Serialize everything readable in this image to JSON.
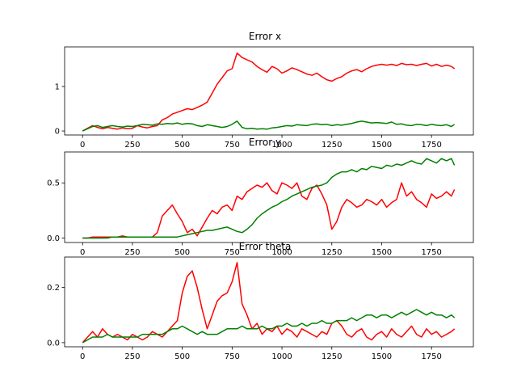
{
  "chart_data": [
    {
      "type": "line",
      "title": "Error x",
      "xlim": [
        -90,
        1960
      ],
      "ylim": [
        -0.09,
        1.89
      ],
      "xticks": [
        0,
        250,
        500,
        750,
        1000,
        1250,
        1500,
        1750
      ],
      "xtick_labels": [
        "0",
        "250",
        "500",
        "750",
        "1000",
        "1250",
        "1500",
        "1750"
      ],
      "yticks": [
        0,
        1
      ],
      "ytick_labels": [
        "0",
        "1"
      ],
      "grid": false,
      "series": [
        {
          "color": "#ff0000",
          "x": [
            0,
            25,
            50,
            75,
            100,
            125,
            150,
            175,
            200,
            225,
            250,
            275,
            300,
            325,
            350,
            375,
            400,
            425,
            450,
            475,
            500,
            525,
            550,
            575,
            600,
            625,
            650,
            675,
            700,
            725,
            750,
            775,
            800,
            825,
            850,
            875,
            900,
            925,
            950,
            975,
            1000,
            1025,
            1050,
            1075,
            1100,
            1125,
            1150,
            1175,
            1200,
            1225,
            1250,
            1275,
            1300,
            1325,
            1350,
            1375,
            1400,
            1425,
            1450,
            1475,
            1500,
            1525,
            1550,
            1575,
            1600,
            1625,
            1650,
            1675,
            1700,
            1725,
            1750,
            1775,
            1800,
            1825,
            1850,
            1865
          ],
          "y": [
            0.0,
            0.06,
            0.12,
            0.08,
            0.05,
            0.08,
            0.06,
            0.04,
            0.07,
            0.05,
            0.06,
            0.12,
            0.09,
            0.07,
            0.1,
            0.12,
            0.25,
            0.3,
            0.38,
            0.42,
            0.46,
            0.5,
            0.48,
            0.53,
            0.58,
            0.65,
            0.85,
            1.05,
            1.2,
            1.35,
            1.4,
            1.75,
            1.65,
            1.6,
            1.55,
            1.45,
            1.38,
            1.32,
            1.45,
            1.4,
            1.3,
            1.35,
            1.42,
            1.38,
            1.33,
            1.28,
            1.25,
            1.3,
            1.22,
            1.15,
            1.12,
            1.18,
            1.22,
            1.3,
            1.35,
            1.38,
            1.33,
            1.4,
            1.45,
            1.48,
            1.5,
            1.48,
            1.5,
            1.47,
            1.52,
            1.49,
            1.5,
            1.47,
            1.5,
            1.52,
            1.46,
            1.5,
            1.45,
            1.48,
            1.45,
            1.4
          ]
        },
        {
          "color": "#008000",
          "x": [
            0,
            25,
            50,
            75,
            100,
            125,
            150,
            175,
            200,
            225,
            250,
            275,
            300,
            325,
            350,
            375,
            400,
            425,
            450,
            475,
            500,
            525,
            550,
            575,
            600,
            625,
            650,
            675,
            700,
            725,
            750,
            775,
            800,
            825,
            850,
            875,
            900,
            925,
            950,
            975,
            1000,
            1025,
            1050,
            1075,
            1100,
            1125,
            1150,
            1175,
            1200,
            1225,
            1250,
            1275,
            1300,
            1325,
            1350,
            1375,
            1400,
            1425,
            1450,
            1475,
            1500,
            1525,
            1550,
            1575,
            1600,
            1625,
            1650,
            1675,
            1700,
            1725,
            1750,
            1775,
            1800,
            1825,
            1850,
            1865
          ],
          "y": [
            0.0,
            0.05,
            0.1,
            0.12,
            0.08,
            0.1,
            0.12,
            0.1,
            0.09,
            0.11,
            0.1,
            0.12,
            0.15,
            0.14,
            0.13,
            0.16,
            0.15,
            0.17,
            0.16,
            0.18,
            0.15,
            0.17,
            0.16,
            0.12,
            0.1,
            0.14,
            0.12,
            0.1,
            0.08,
            0.1,
            0.15,
            0.22,
            0.08,
            0.05,
            0.06,
            0.04,
            0.05,
            0.04,
            0.07,
            0.08,
            0.1,
            0.12,
            0.11,
            0.14,
            0.13,
            0.12,
            0.15,
            0.16,
            0.14,
            0.15,
            0.12,
            0.14,
            0.13,
            0.15,
            0.17,
            0.2,
            0.22,
            0.2,
            0.18,
            0.19,
            0.18,
            0.17,
            0.2,
            0.15,
            0.16,
            0.13,
            0.12,
            0.15,
            0.14,
            0.12,
            0.15,
            0.13,
            0.12,
            0.14,
            0.1,
            0.15
          ]
        }
      ]
    },
    {
      "type": "line",
      "title": "Error y",
      "xlim": [
        -90,
        1960
      ],
      "ylim": [
        -0.04,
        0.78
      ],
      "xticks": [
        0,
        250,
        500,
        750,
        1000,
        1250,
        1500,
        1750
      ],
      "xtick_labels": [
        "0",
        "250",
        "500",
        "750",
        "1000",
        "1250",
        "1500",
        "1750"
      ],
      "yticks": [
        0,
        0.5
      ],
      "ytick_labels": [
        "0.0",
        "0.5"
      ],
      "grid": false,
      "series": [
        {
          "color": "#ff0000",
          "x": [
            0,
            25,
            50,
            75,
            100,
            125,
            150,
            175,
            200,
            225,
            250,
            275,
            300,
            325,
            350,
            375,
            400,
            425,
            450,
            475,
            500,
            525,
            550,
            575,
            600,
            625,
            650,
            675,
            700,
            725,
            750,
            775,
            800,
            825,
            850,
            875,
            900,
            925,
            950,
            975,
            1000,
            1025,
            1050,
            1075,
            1100,
            1125,
            1150,
            1175,
            1200,
            1225,
            1250,
            1275,
            1300,
            1325,
            1350,
            1375,
            1400,
            1425,
            1450,
            1475,
            1500,
            1525,
            1550,
            1575,
            1600,
            1625,
            1650,
            1675,
            1700,
            1725,
            1750,
            1775,
            1800,
            1825,
            1850,
            1865
          ],
          "y": [
            0.0,
            0.0,
            0.01,
            0.01,
            0.01,
            0.01,
            0.01,
            0.01,
            0.02,
            0.01,
            0.01,
            0.01,
            0.01,
            0.01,
            0.01,
            0.05,
            0.2,
            0.25,
            0.3,
            0.22,
            0.15,
            0.05,
            0.08,
            0.02,
            0.1,
            0.18,
            0.25,
            0.22,
            0.28,
            0.3,
            0.25,
            0.38,
            0.35,
            0.42,
            0.45,
            0.48,
            0.46,
            0.5,
            0.43,
            0.4,
            0.5,
            0.48,
            0.45,
            0.5,
            0.38,
            0.35,
            0.45,
            0.48,
            0.4,
            0.3,
            0.08,
            0.15,
            0.28,
            0.35,
            0.32,
            0.28,
            0.3,
            0.35,
            0.33,
            0.3,
            0.35,
            0.28,
            0.32,
            0.35,
            0.5,
            0.38,
            0.42,
            0.35,
            0.32,
            0.28,
            0.4,
            0.36,
            0.38,
            0.42,
            0.38,
            0.44
          ]
        },
        {
          "color": "#008000",
          "x": [
            0,
            25,
            50,
            75,
            100,
            125,
            150,
            175,
            200,
            225,
            250,
            275,
            300,
            325,
            350,
            375,
            400,
            425,
            450,
            475,
            500,
            525,
            550,
            575,
            600,
            625,
            650,
            675,
            700,
            725,
            750,
            775,
            800,
            825,
            850,
            875,
            900,
            925,
            950,
            975,
            1000,
            1025,
            1050,
            1075,
            1100,
            1125,
            1150,
            1175,
            1200,
            1225,
            1250,
            1275,
            1300,
            1325,
            1350,
            1375,
            1400,
            1425,
            1450,
            1475,
            1500,
            1525,
            1550,
            1575,
            1600,
            1625,
            1650,
            1675,
            1700,
            1725,
            1750,
            1775,
            1800,
            1825,
            1850,
            1865
          ],
          "y": [
            0.0,
            0.0,
            0.0,
            0.0,
            0.0,
            0.0,
            0.01,
            0.01,
            0.01,
            0.01,
            0.01,
            0.01,
            0.01,
            0.01,
            0.01,
            0.01,
            0.01,
            0.01,
            0.01,
            0.01,
            0.02,
            0.03,
            0.04,
            0.05,
            0.06,
            0.07,
            0.07,
            0.08,
            0.09,
            0.1,
            0.08,
            0.06,
            0.05,
            0.08,
            0.12,
            0.18,
            0.22,
            0.25,
            0.28,
            0.3,
            0.33,
            0.35,
            0.38,
            0.4,
            0.42,
            0.44,
            0.46,
            0.47,
            0.48,
            0.5,
            0.55,
            0.58,
            0.6,
            0.6,
            0.62,
            0.6,
            0.63,
            0.62,
            0.65,
            0.64,
            0.63,
            0.66,
            0.65,
            0.67,
            0.66,
            0.68,
            0.7,
            0.68,
            0.67,
            0.72,
            0.7,
            0.68,
            0.72,
            0.7,
            0.72,
            0.66
          ]
        }
      ]
    },
    {
      "type": "line",
      "title": "Error theta",
      "xlim": [
        -90,
        1960
      ],
      "ylim": [
        -0.015,
        0.31
      ],
      "xticks": [
        0,
        250,
        500,
        750,
        1000,
        1250,
        1500,
        1750
      ],
      "xtick_labels": [
        "0",
        "250",
        "500",
        "750",
        "1000",
        "1250",
        "1500",
        "1750"
      ],
      "yticks": [
        0,
        0.2
      ],
      "ytick_labels": [
        "0.0",
        "0.2"
      ],
      "grid": false,
      "series": [
        {
          "color": "#ff0000",
          "x": [
            0,
            25,
            50,
            75,
            100,
            125,
            150,
            175,
            200,
            225,
            250,
            275,
            300,
            325,
            350,
            375,
            400,
            425,
            450,
            475,
            500,
            525,
            550,
            575,
            600,
            625,
            650,
            675,
            700,
            725,
            750,
            775,
            800,
            825,
            850,
            875,
            900,
            925,
            950,
            975,
            1000,
            1025,
            1050,
            1075,
            1100,
            1125,
            1150,
            1175,
            1200,
            1225,
            1250,
            1275,
            1300,
            1325,
            1350,
            1375,
            1400,
            1425,
            1450,
            1475,
            1500,
            1525,
            1550,
            1575,
            1600,
            1625,
            1650,
            1675,
            1700,
            1725,
            1750,
            1775,
            1800,
            1825,
            1850,
            1865
          ],
          "y": [
            0.0,
            0.02,
            0.04,
            0.02,
            0.05,
            0.03,
            0.02,
            0.03,
            0.02,
            0.01,
            0.03,
            0.02,
            0.01,
            0.02,
            0.04,
            0.03,
            0.02,
            0.04,
            0.06,
            0.08,
            0.18,
            0.24,
            0.26,
            0.2,
            0.12,
            0.05,
            0.1,
            0.15,
            0.17,
            0.18,
            0.22,
            0.29,
            0.14,
            0.1,
            0.05,
            0.07,
            0.03,
            0.05,
            0.04,
            0.06,
            0.03,
            0.05,
            0.04,
            0.02,
            0.05,
            0.04,
            0.03,
            0.02,
            0.04,
            0.03,
            0.07,
            0.08,
            0.06,
            0.03,
            0.02,
            0.04,
            0.05,
            0.02,
            0.01,
            0.03,
            0.04,
            0.02,
            0.05,
            0.03,
            0.02,
            0.04,
            0.06,
            0.03,
            0.02,
            0.05,
            0.03,
            0.04,
            0.02,
            0.03,
            0.04,
            0.05
          ]
        },
        {
          "color": "#008000",
          "x": [
            0,
            25,
            50,
            75,
            100,
            125,
            150,
            175,
            200,
            225,
            250,
            275,
            300,
            325,
            350,
            375,
            400,
            425,
            450,
            475,
            500,
            525,
            550,
            575,
            600,
            625,
            650,
            675,
            700,
            725,
            750,
            775,
            800,
            825,
            850,
            875,
            900,
            925,
            950,
            975,
            1000,
            1025,
            1050,
            1075,
            1100,
            1125,
            1150,
            1175,
            1200,
            1225,
            1250,
            1275,
            1300,
            1325,
            1350,
            1375,
            1400,
            1425,
            1450,
            1475,
            1500,
            1525,
            1550,
            1575,
            1600,
            1625,
            1650,
            1675,
            1700,
            1725,
            1750,
            1775,
            1800,
            1825,
            1850,
            1865
          ],
          "y": [
            0.0,
            0.01,
            0.02,
            0.02,
            0.02,
            0.03,
            0.02,
            0.02,
            0.02,
            0.02,
            0.02,
            0.02,
            0.03,
            0.03,
            0.03,
            0.03,
            0.03,
            0.04,
            0.05,
            0.05,
            0.06,
            0.05,
            0.04,
            0.03,
            0.04,
            0.03,
            0.03,
            0.03,
            0.04,
            0.05,
            0.05,
            0.05,
            0.06,
            0.05,
            0.05,
            0.05,
            0.06,
            0.05,
            0.05,
            0.06,
            0.06,
            0.07,
            0.06,
            0.06,
            0.07,
            0.06,
            0.07,
            0.07,
            0.08,
            0.07,
            0.07,
            0.08,
            0.08,
            0.08,
            0.09,
            0.08,
            0.09,
            0.1,
            0.1,
            0.09,
            0.1,
            0.1,
            0.09,
            0.1,
            0.11,
            0.1,
            0.11,
            0.12,
            0.11,
            0.1,
            0.11,
            0.1,
            0.1,
            0.09,
            0.1,
            0.09
          ]
        }
      ]
    }
  ]
}
